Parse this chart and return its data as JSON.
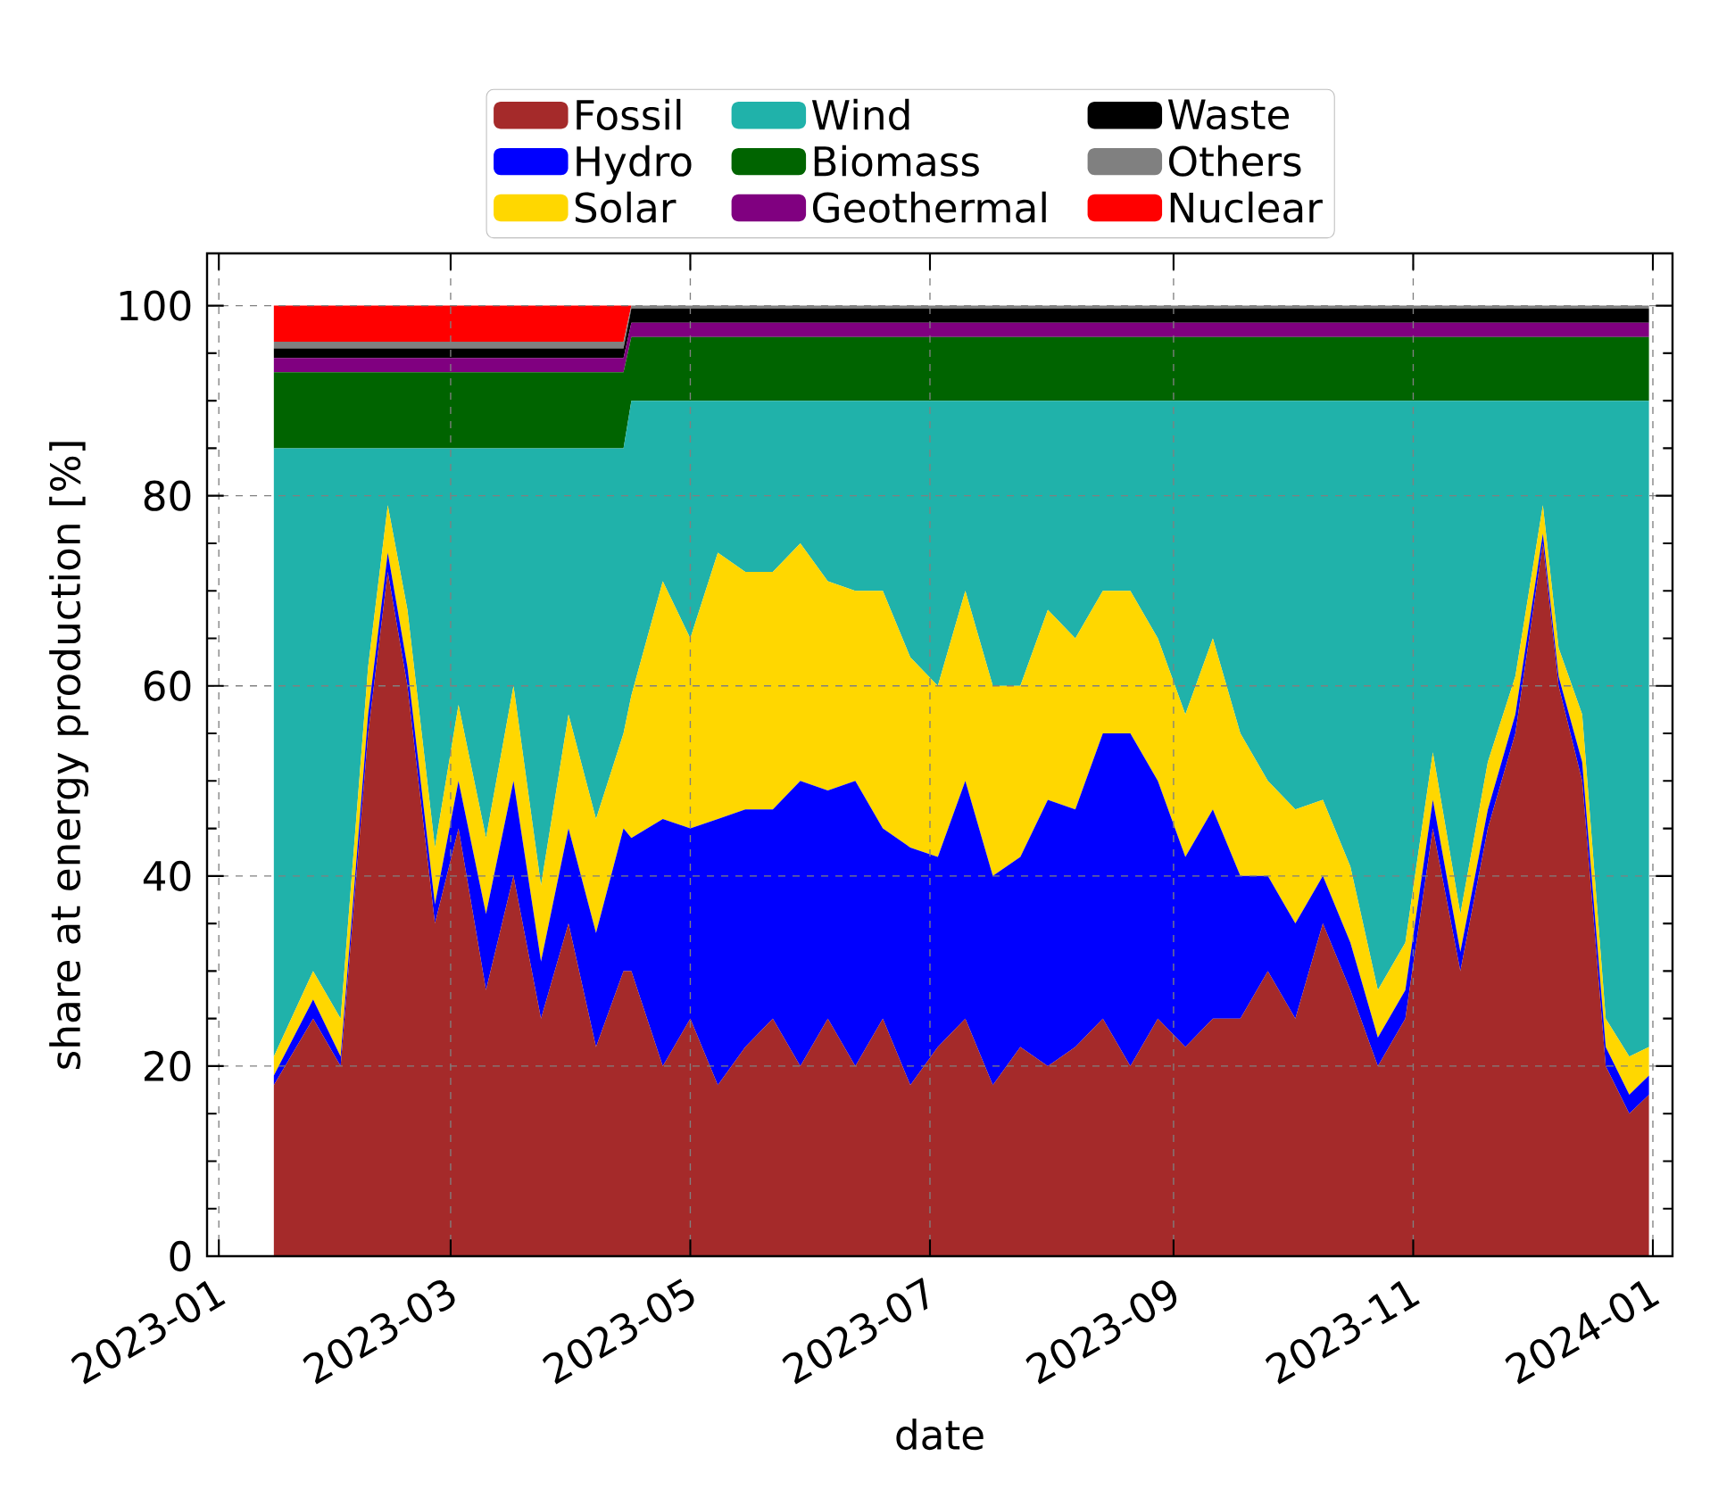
{
  "chart_data": {
    "type": "area",
    "stacked": true,
    "xlabel": "date",
    "ylabel": "share at energy production [%]",
    "x": [
      "2023-01-15",
      "2023-01-25",
      "2023-02-01",
      "2023-02-08",
      "2023-02-13",
      "2023-02-18",
      "2023-02-25",
      "2023-03-03",
      "2023-03-10",
      "2023-03-17",
      "2023-03-24",
      "2023-03-31",
      "2023-04-07",
      "2023-04-14",
      "2023-04-16",
      "2023-04-24",
      "2023-05-01",
      "2023-05-08",
      "2023-05-15",
      "2023-05-22",
      "2023-05-29",
      "2023-06-05",
      "2023-06-12",
      "2023-06-19",
      "2023-06-26",
      "2023-07-03",
      "2023-07-10",
      "2023-07-17",
      "2023-07-24",
      "2023-07-31",
      "2023-08-07",
      "2023-08-14",
      "2023-08-21",
      "2023-08-28",
      "2023-09-04",
      "2023-09-11",
      "2023-09-18",
      "2023-09-25",
      "2023-10-02",
      "2023-10-09",
      "2023-10-16",
      "2023-10-23",
      "2023-10-30",
      "2023-11-06",
      "2023-11-13",
      "2023-11-20",
      "2023-11-27",
      "2023-12-04",
      "2023-12-08",
      "2023-12-14",
      "2023-12-20",
      "2023-12-26",
      "2023-12-31"
    ],
    "series": [
      {
        "name": "Fossil",
        "color": "#a52a2a",
        "values": [
          18,
          25,
          20,
          55,
          72,
          60,
          35,
          45,
          28,
          40,
          25,
          35,
          22,
          30,
          30,
          20,
          25,
          18,
          22,
          25,
          20,
          25,
          20,
          25,
          18,
          22,
          25,
          18,
          22,
          20,
          22,
          25,
          20,
          25,
          22,
          25,
          25,
          30,
          25,
          35,
          28,
          20,
          25,
          45,
          30,
          45,
          55,
          75,
          60,
          50,
          20,
          15,
          17
        ]
      },
      {
        "name": "Hydro",
        "color": "#0000ff",
        "values": [
          1,
          2,
          1,
          2,
          2,
          2,
          2,
          5,
          8,
          10,
          6,
          10,
          12,
          15,
          14,
          26,
          20,
          28,
          25,
          22,
          30,
          24,
          30,
          20,
          25,
          20,
          25,
          22,
          20,
          28,
          25,
          30,
          35,
          25,
          20,
          22,
          15,
          10,
          10,
          5,
          5,
          3,
          3,
          3,
          2,
          2,
          2,
          1,
          1,
          2,
          2,
          2,
          2
        ]
      },
      {
        "name": "Solar",
        "color": "#ffd700",
        "values": [
          2,
          3,
          4,
          5,
          5,
          6,
          6,
          8,
          8,
          10,
          8,
          12,
          12,
          10,
          15,
          25,
          20,
          28,
          25,
          25,
          25,
          22,
          20,
          25,
          20,
          18,
          20,
          20,
          18,
          20,
          18,
          15,
          15,
          15,
          15,
          18,
          15,
          10,
          12,
          8,
          8,
          5,
          5,
          5,
          4,
          5,
          4,
          3,
          3,
          5,
          3,
          4,
          3
        ]
      },
      {
        "name": "Wind",
        "color": "#20b2aa",
        "values": [
          64,
          55,
          60,
          23,
          6,
          17,
          42,
          27,
          41,
          25,
          46,
          28,
          39,
          30,
          31,
          19,
          25,
          16,
          18,
          18,
          15,
          19,
          20,
          20,
          27,
          30,
          20,
          30,
          30,
          22,
          25,
          20,
          20,
          25,
          33,
          25,
          35,
          40,
          43,
          42,
          49,
          62,
          57,
          37,
          54,
          38,
          29,
          11,
          26,
          33,
          65,
          69,
          68
        ]
      },
      {
        "name": "Biomass",
        "color": "#006400",
        "values": [
          8,
          8,
          8,
          8,
          8,
          8,
          8,
          8,
          8,
          8,
          8,
          8,
          8,
          8,
          6.7,
          6.7,
          6.7,
          6.7,
          6.7,
          6.7,
          6.7,
          6.7,
          6.7,
          6.7,
          6.7,
          6.7,
          6.7,
          6.7,
          6.7,
          6.7,
          6.7,
          6.7,
          6.7,
          6.7,
          6.7,
          6.7,
          6.7,
          6.7,
          6.7,
          6.7,
          6.7,
          6.7,
          6.7,
          6.7,
          6.7,
          6.7,
          6.7,
          6.7,
          6.7,
          6.7,
          6.7,
          6.7,
          6.7
        ]
      },
      {
        "name": "Geothermal",
        "color": "#800080",
        "values": [
          1.5,
          1.5,
          1.5,
          1.5,
          1.5,
          1.5,
          1.5,
          1.5,
          1.5,
          1.5,
          1.5,
          1.5,
          1.5,
          1.5,
          1.5,
          1.5,
          1.5,
          1.5,
          1.5,
          1.5,
          1.5,
          1.5,
          1.5,
          1.5,
          1.5,
          1.5,
          1.5,
          1.5,
          1.5,
          1.5,
          1.5,
          1.5,
          1.5,
          1.5,
          1.5,
          1.5,
          1.5,
          1.5,
          1.5,
          1.5,
          1.5,
          1.5,
          1.5,
          1.5,
          1.5,
          1.5,
          1.5,
          1.5,
          1.5,
          1.5,
          1.5,
          1.5,
          1.5
        ]
      },
      {
        "name": "Waste",
        "color": "#000000",
        "values": [
          1,
          1,
          1,
          1,
          1,
          1,
          1,
          1,
          1,
          1,
          1,
          1,
          1,
          1,
          1.5,
          1.5,
          1.5,
          1.5,
          1.5,
          1.5,
          1.5,
          1.5,
          1.5,
          1.5,
          1.5,
          1.5,
          1.5,
          1.5,
          1.5,
          1.5,
          1.5,
          1.5,
          1.5,
          1.5,
          1.5,
          1.5,
          1.5,
          1.5,
          1.5,
          1.5,
          1.5,
          1.5,
          1.5,
          1.5,
          1.5,
          1.5,
          1.5,
          1.5,
          1.5,
          1.5,
          1.5,
          1.5,
          1.5
        ]
      },
      {
        "name": "Others",
        "color": "#808080",
        "values": [
          0.7,
          0.7,
          0.7,
          0.7,
          0.7,
          0.7,
          0.7,
          0.7,
          0.7,
          0.7,
          0.7,
          0.7,
          0.7,
          0.7,
          0.3,
          0.3,
          0.3,
          0.3,
          0.3,
          0.3,
          0.3,
          0.3,
          0.3,
          0.3,
          0.3,
          0.3,
          0.3,
          0.3,
          0.3,
          0.3,
          0.3,
          0.3,
          0.3,
          0.3,
          0.3,
          0.3,
          0.3,
          0.3,
          0.3,
          0.3,
          0.3,
          0.3,
          0.3,
          0.3,
          0.3,
          0.3,
          0.3,
          0.3,
          0.3,
          0.3,
          0.3,
          0.3,
          0.3
        ]
      },
      {
        "name": "Nuclear",
        "color": "#ff0000",
        "values": [
          3.8,
          3.8,
          3.8,
          3.8,
          3.8,
          3.8,
          3.8,
          3.8,
          3.8,
          3.8,
          3.8,
          3.8,
          3.8,
          3.8,
          0,
          0,
          0,
          0,
          0,
          0,
          0,
          0,
          0,
          0,
          0,
          0,
          0,
          0,
          0,
          0,
          0,
          0,
          0,
          0,
          0,
          0,
          0,
          0,
          0,
          0,
          0,
          0,
          0,
          0,
          0,
          0,
          0,
          0,
          0,
          0,
          0,
          0,
          0
        ]
      }
    ],
    "xlim": [
      "2022-12-29",
      "2024-01-06"
    ],
    "xticks": [
      {
        "value": "2023-01-01",
        "label": "2023-01"
      },
      {
        "value": "2023-03-01",
        "label": "2023-03"
      },
      {
        "value": "2023-05-01",
        "label": "2023-05"
      },
      {
        "value": "2023-07-01",
        "label": "2023-07"
      },
      {
        "value": "2023-09-01",
        "label": "2023-09"
      },
      {
        "value": "2023-11-01",
        "label": "2023-11"
      },
      {
        "value": "2024-01-01",
        "label": "2024-01"
      }
    ],
    "ylim": [
      0,
      105.5
    ],
    "yticks": [
      0,
      20,
      40,
      60,
      80,
      100
    ],
    "grid": true,
    "legend": "top"
  }
}
